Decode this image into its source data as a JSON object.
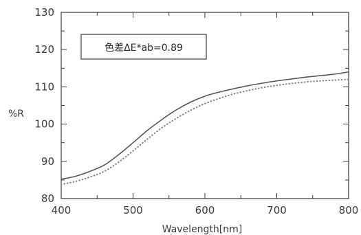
{
  "chart_data": {
    "type": "line",
    "title": "",
    "xlabel": "Wavelength[nm]",
    "ylabel": "%R",
    "xlim": [
      400,
      800
    ],
    "ylim": [
      80,
      130
    ],
    "xticks": [
      400,
      500,
      600,
      700,
      800
    ],
    "yticks": [
      80,
      90,
      100,
      110,
      120,
      130
    ],
    "grid": false,
    "annotation": "色差ΔE*ab=0.89",
    "series": [
      {
        "style": "solid",
        "color": "#555555",
        "x": [
          400,
          420,
          440,
          460,
          480,
          500,
          520,
          540,
          560,
          580,
          600,
          620,
          640,
          660,
          680,
          700,
          720,
          740,
          760,
          780,
          800
        ],
        "y": [
          85.2,
          86.0,
          87.3,
          89.0,
          91.8,
          95.0,
          98.3,
          101.2,
          103.8,
          105.9,
          107.5,
          108.6,
          109.5,
          110.3,
          111.0,
          111.6,
          112.1,
          112.6,
          113.0,
          113.4,
          114.0
        ]
      },
      {
        "style": "dotted",
        "color": "#888888",
        "x": [
          400,
          420,
          440,
          460,
          480,
          500,
          520,
          540,
          560,
          580,
          600,
          620,
          640,
          660,
          680,
          700,
          720,
          740,
          760,
          780,
          800
        ],
        "y": [
          83.8,
          84.6,
          85.8,
          87.3,
          89.8,
          92.8,
          96.0,
          99.0,
          101.5,
          103.7,
          105.5,
          106.9,
          108.1,
          109.0,
          109.8,
          110.4,
          110.9,
          111.3,
          111.6,
          111.8,
          112.0
        ]
      }
    ]
  }
}
